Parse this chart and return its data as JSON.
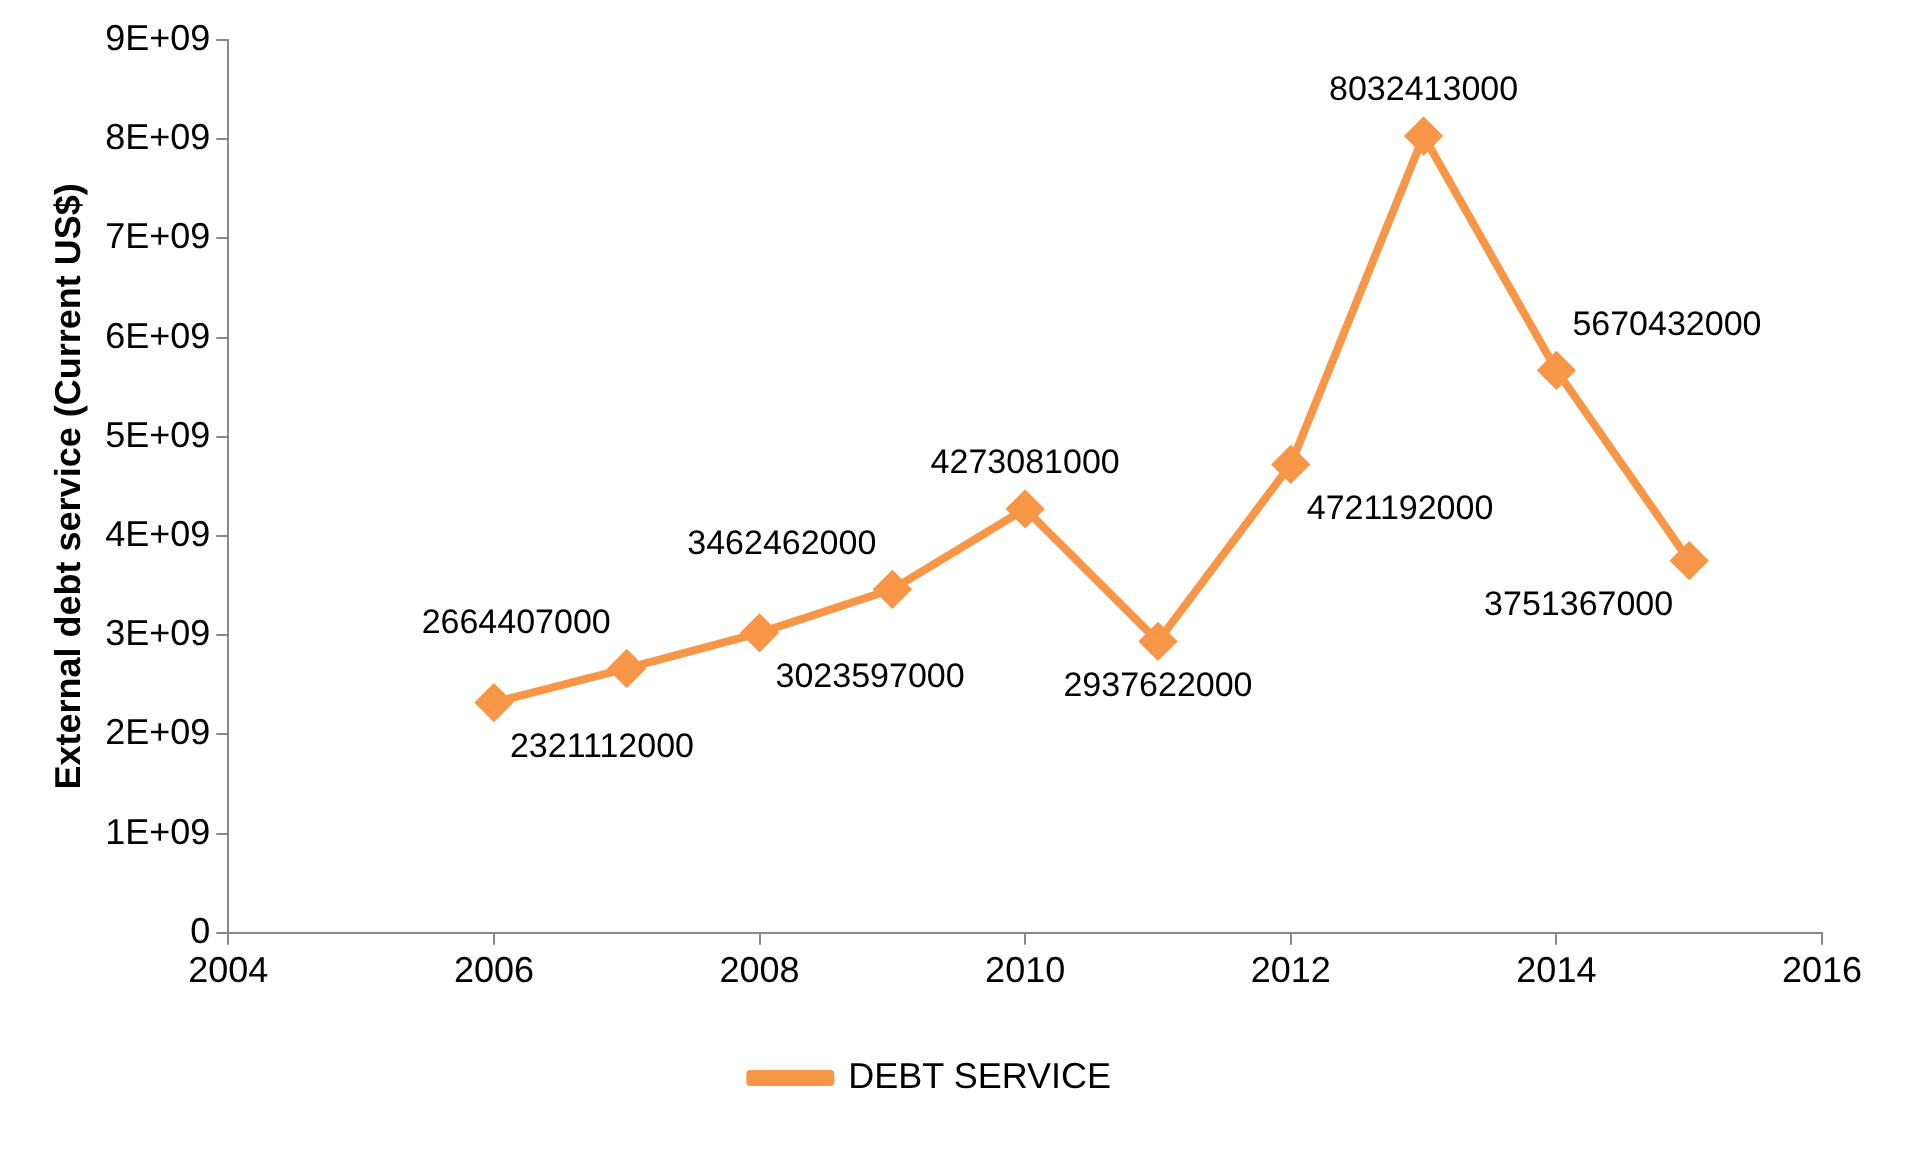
{
  "chart_data": {
    "type": "line",
    "ylabel": "External debt service (Current US$)",
    "x": [
      2006,
      2007,
      2008,
      2009,
      2010,
      2011,
      2012,
      2013,
      2014,
      2015
    ],
    "series": [
      {
        "name": "DEBT SERVICE",
        "color": "#f79646",
        "values": [
          2321112000,
          2664407000,
          3023597000,
          3462462000,
          4273081000,
          2937622000,
          4721192000,
          8032413000,
          5670432000,
          3751367000
        ]
      }
    ],
    "xlim": [
      2004,
      2016
    ],
    "xticks": [
      2004,
      2006,
      2008,
      2010,
      2012,
      2014,
      2016
    ],
    "ylim": [
      0,
      9000000000
    ],
    "yticks": [
      0,
      {
        "value": 1000000000,
        "label": "1E+09"
      },
      {
        "value": 2000000000,
        "label": "2E+09"
      },
      {
        "value": 3000000000,
        "label": "3E+09"
      },
      {
        "value": 4000000000,
        "label": "4E+09"
      },
      {
        "value": 5000000000,
        "label": "5E+09"
      },
      {
        "value": 6000000000,
        "label": "6E+09"
      },
      {
        "value": 7000000000,
        "label": "7E+09"
      },
      {
        "value": 8000000000,
        "label": "8E+09"
      },
      {
        "value": 9000000000,
        "label": "9E+09"
      }
    ],
    "grid": false,
    "legend": "bottom",
    "marker": "diamond",
    "line_style": "solid",
    "data_labels": true
  }
}
